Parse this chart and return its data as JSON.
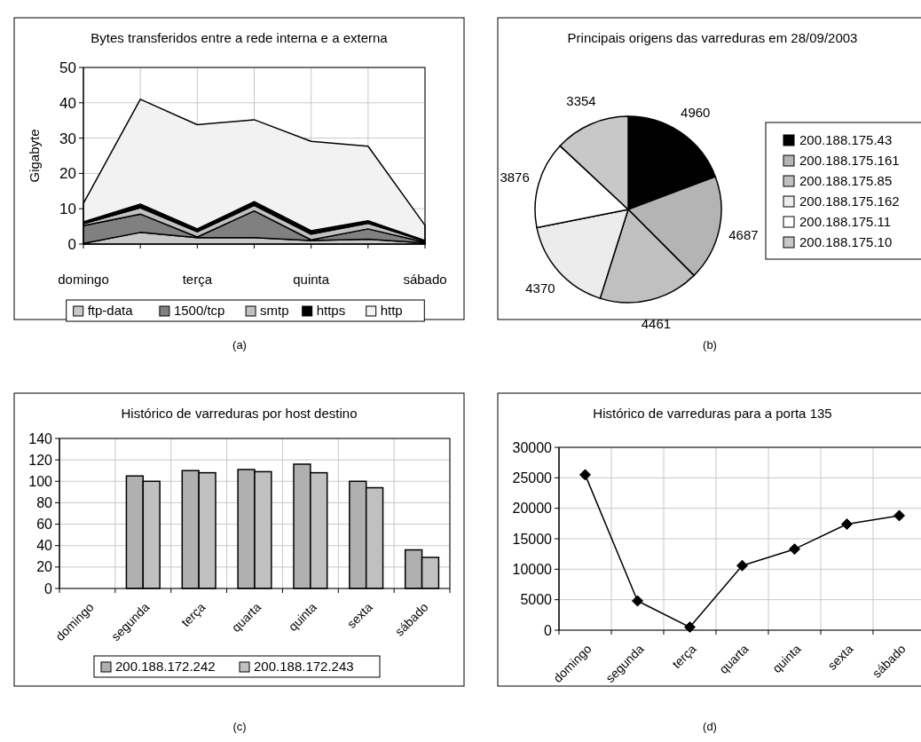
{
  "chart_data": [
    {
      "type": "area",
      "stacked": true,
      "title": "Bytes transferidos entre a rede interna e a externa",
      "ylabel": "Gigabyte",
      "categories": [
        "domingo",
        null,
        "terça",
        null,
        "quinta",
        null,
        "sábado"
      ],
      "ylim": [
        0,
        50
      ],
      "yticks": [
        0,
        10,
        20,
        30,
        40,
        50
      ],
      "grid": true,
      "legend": "bottom",
      "annotations": [
        "(a)"
      ],
      "series": [
        {
          "name": "ftp-data",
          "color": "#c8c8c8",
          "values": [
            0.2,
            3.3,
            1.8,
            1.8,
            1.0,
            1.4,
            0.3
          ]
        },
        {
          "name": "1500/tcp",
          "color": "#808080",
          "values": [
            5.0,
            5.2,
            0.2,
            7.6,
            0.2,
            2.9,
            0.2
          ]
        },
        {
          "name": "smtp",
          "color": "#c0c0c0",
          "values": [
            0.6,
            1.8,
            1.5,
            1.6,
            1.6,
            1.6,
            0.3
          ]
        },
        {
          "name": "https",
          "color": "#000000",
          "values": [
            0.5,
            1.0,
            0.8,
            1.0,
            1.0,
            0.7,
            0.2
          ]
        },
        {
          "name": "http",
          "color": "#f2f2f2",
          "values": [
            5.2,
            29.7,
            29.5,
            23.2,
            25.3,
            21.1,
            4.3
          ]
        }
      ]
    },
    {
      "type": "pie",
      "title": "Principais origens das varreduras em 28/09/2003",
      "categories": [
        "200.188.175.43",
        "200.188.175.161",
        "200.188.175.85",
        "200.188.175.162",
        "200.188.175.11",
        "200.188.175.10"
      ],
      "values": [
        4960,
        4687,
        4461,
        4370,
        3876,
        3354
      ],
      "colors": [
        "#000000",
        "#b4b4b4",
        "#c0c0c0",
        "#ececec",
        "#ffffff",
        "#c8c8c8"
      ],
      "data_labels": true,
      "legend": "right",
      "annotations": [
        "(b)"
      ]
    },
    {
      "type": "bar",
      "title": "Histórico de varreduras por host destino",
      "categories": [
        "domingo",
        "segunda",
        "terça",
        "quarta",
        "quinta",
        "sexta",
        "sábado"
      ],
      "ylim": [
        0,
        140
      ],
      "yticks": [
        0,
        20,
        40,
        60,
        80,
        100,
        120,
        140
      ],
      "grid": true,
      "legend": "bottom",
      "annotations": [
        "(c)"
      ],
      "series": [
        {
          "name": "200.188.172.242",
          "color": "#b0b0b0",
          "values": [
            null,
            105,
            110,
            111,
            116,
            100,
            36
          ]
        },
        {
          "name": "200.188.172.243",
          "color": "#c0c0c0",
          "values": [
            null,
            100,
            108,
            109,
            108,
            94,
            29
          ]
        }
      ]
    },
    {
      "type": "line",
      "title": "Histórico de varreduras para a porta 135",
      "categories": [
        "domingo",
        "segunda",
        "terça",
        "quarta",
        "quinta",
        "sexta",
        "sábado"
      ],
      "ylim": [
        0,
        30000
      ],
      "yticks": [
        0,
        5000,
        10000,
        15000,
        20000,
        25000,
        30000
      ],
      "grid": true,
      "marker": "diamond",
      "annotations": [
        "(d)"
      ],
      "series": [
        {
          "color": "#000000",
          "values": [
            25500,
            4800,
            500,
            10600,
            13300,
            17400,
            18800
          ]
        }
      ]
    }
  ]
}
